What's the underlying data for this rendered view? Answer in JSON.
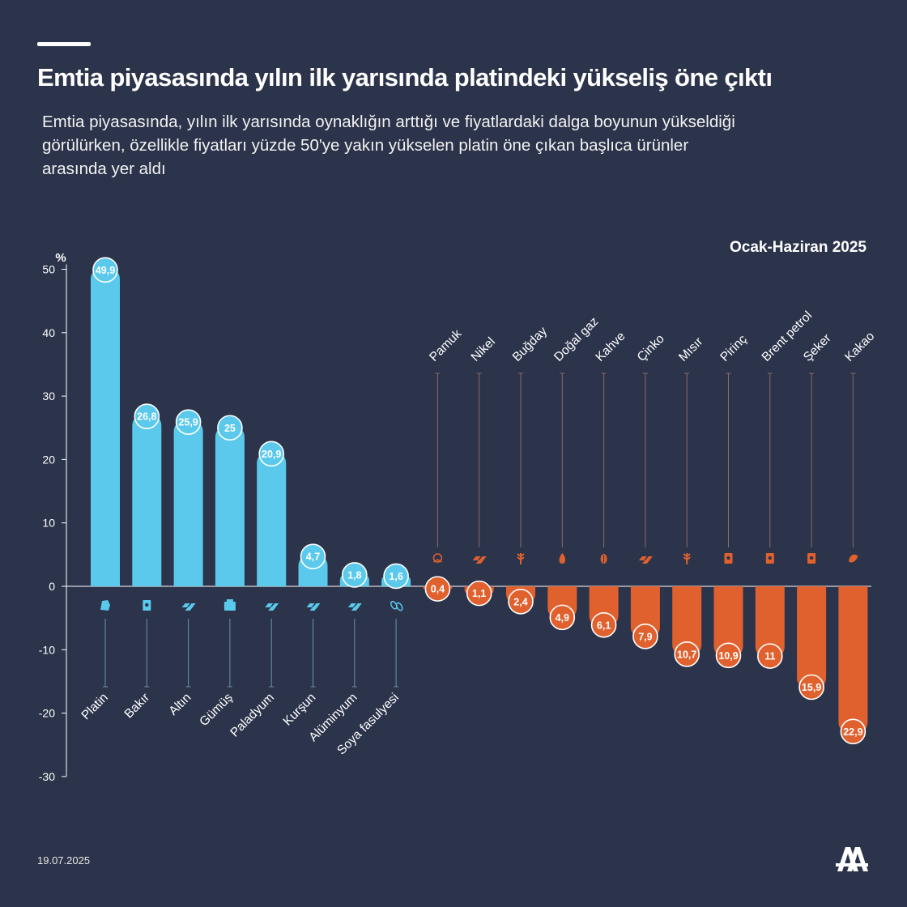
{
  "header": {
    "title": "Emtia piyasasında yılın ilk yarısında platindeki yükseliş öne çıktı",
    "subtitle": "Emtia piyasasında, yılın ilk yarısında oynaklığın arttığı ve fiyatlardaki dalga boyunun yükseldiği görülürken, özellikle fiyatları yüzde 50'ye yakın yükselen platin öne çıkan başlıca ürünler arasında yer aldı",
    "period": "Ocak-Haziran 2025"
  },
  "footer": {
    "date": "19.07.2025",
    "logo_text": "AA"
  },
  "colors": {
    "background": "#2c344b",
    "positive": "#5ac9ec",
    "negative": "#e0612e"
  },
  "chart_data": {
    "type": "bar",
    "title": "Ocak-Haziran 2025",
    "ylabel": "%",
    "ylim": [
      -30,
      50
    ],
    "yticks": [
      50,
      40,
      30,
      20,
      10,
      0,
      -10,
      -20,
      -30
    ],
    "ytick_labels": [
      "50",
      "40",
      "30",
      "20",
      "10",
      "0",
      "-10",
      "-20",
      "-30"
    ],
    "categories": [
      "Platin",
      "Bakır",
      "Altın",
      "Gümüş",
      "Paladyum",
      "Kurşun",
      "Alüminyum",
      "Soya fasulyesi",
      "Pamuk",
      "Nikel",
      "Buğday",
      "Doğal gaz",
      "Kahve",
      "Çinko",
      "Mısır",
      "Pirinç",
      "Brent petrol",
      "Şeker",
      "Kakao"
    ],
    "values": [
      49.9,
      26.8,
      25.9,
      25,
      20.9,
      4.7,
      1.8,
      1.6,
      -0.4,
      -1.1,
      -2.4,
      -4.9,
      -6.1,
      -7.9,
      -10.7,
      -10.9,
      -11,
      -15.9,
      -22.9
    ],
    "labels": [
      "49,9",
      "26,8",
      "25,9",
      "25",
      "20,9",
      "4,7",
      "1,8",
      "1,6",
      "0,4",
      "1,1",
      "2,4",
      "4,9",
      "6,1",
      "7,9",
      "10,7",
      "10,9",
      "11",
      "15,9",
      "22,9"
    ],
    "icons": [
      "metal-pile-icon",
      "ore-block-icon",
      "gold-bars-icon",
      "silver-ingot-icon",
      "metal-bars-icon",
      "metal-bars-icon",
      "metal-bars-icon",
      "soybean-icon",
      "cotton-icon",
      "nickel-bars-icon",
      "wheat-icon",
      "gas-flame-icon",
      "coffee-bean-icon",
      "zinc-bars-icon",
      "corn-icon",
      "rice-sack-icon",
      "oil-barrel-icon",
      "sugar-cube-icon",
      "cocoa-icon"
    ]
  }
}
